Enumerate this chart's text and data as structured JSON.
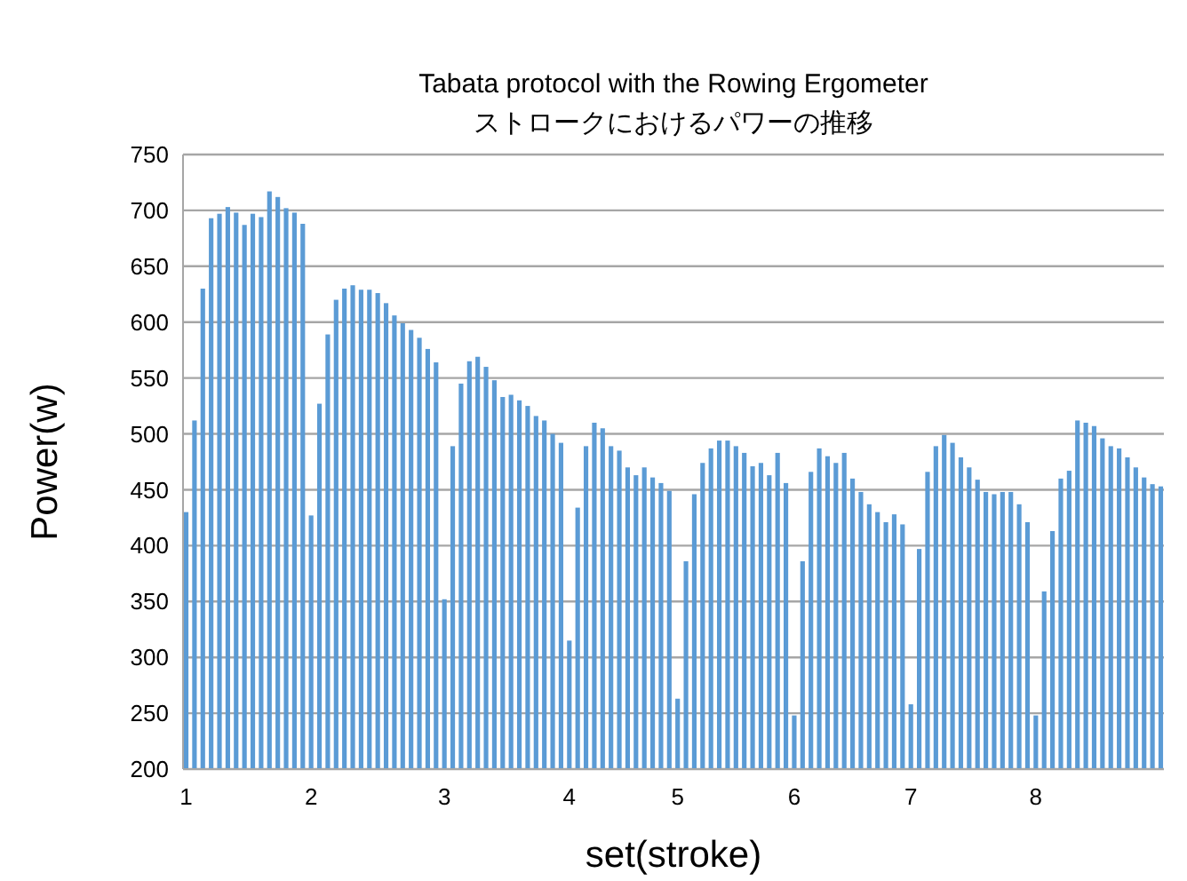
{
  "chart_data": {
    "type": "bar",
    "title": "Tabata protocol with the Rowing Ergometer",
    "subtitle": "ストロークにおけるパワーの推移",
    "xlabel": "set(stroke)",
    "ylabel": "Power(w)",
    "categories": [
      "1",
      null,
      null,
      null,
      null,
      null,
      null,
      null,
      null,
      null,
      null,
      null,
      null,
      null,
      null,
      "2",
      null,
      null,
      null,
      null,
      null,
      null,
      null,
      null,
      null,
      null,
      null,
      null,
      null,
      null,
      null,
      "3",
      null,
      null,
      null,
      null,
      null,
      null,
      null,
      null,
      null,
      null,
      null,
      null,
      null,
      null,
      "4",
      null,
      null,
      null,
      null,
      null,
      null,
      null,
      null,
      null,
      null,
      null,
      null,
      "5",
      null,
      null,
      null,
      null,
      null,
      null,
      null,
      null,
      null,
      null,
      null,
      null,
      null,
      "6",
      null,
      null,
      null,
      null,
      null,
      null,
      null,
      null,
      null,
      null,
      null,
      null,
      null,
      "7",
      null,
      null,
      null,
      null,
      null,
      null,
      null,
      null,
      null,
      null,
      null,
      null,
      null,
      null,
      "8",
      null,
      null,
      null,
      null,
      null,
      null,
      null,
      null,
      null,
      null,
      null,
      null,
      null,
      null,
      null
    ],
    "values": [
      430,
      512,
      630,
      693,
      697,
      703,
      698,
      687,
      697,
      694,
      717,
      712,
      702,
      698,
      688,
      427,
      527,
      589,
      620,
      630,
      633,
      629,
      629,
      626,
      617,
      606,
      599,
      593,
      586,
      576,
      564,
      352,
      489,
      545,
      565,
      569,
      560,
      548,
      533,
      535,
      530,
      525,
      516,
      512,
      500,
      492,
      315,
      434,
      489,
      510,
      505,
      489,
      485,
      470,
      463,
      470,
      461,
      456,
      449,
      263,
      386,
      446,
      474,
      487,
      494,
      494,
      489,
      483,
      471,
      474,
      463,
      483,
      456,
      248,
      386,
      466,
      487,
      480,
      474,
      483,
      460,
      448,
      437,
      430,
      421,
      428,
      419,
      258,
      397,
      466,
      489,
      499,
      492,
      479,
      470,
      459,
      448,
      446,
      448,
      448,
      437,
      421,
      248,
      359,
      413,
      460,
      467,
      512,
      510,
      507,
      496,
      489,
      487,
      479,
      470,
      461,
      455,
      453
    ],
    "color": "#5b9bd5",
    "ylim": [
      200,
      750
    ],
    "yticks": [
      200,
      250,
      300,
      350,
      400,
      450,
      500,
      550,
      600,
      650,
      700,
      750
    ],
    "grid": "y"
  }
}
